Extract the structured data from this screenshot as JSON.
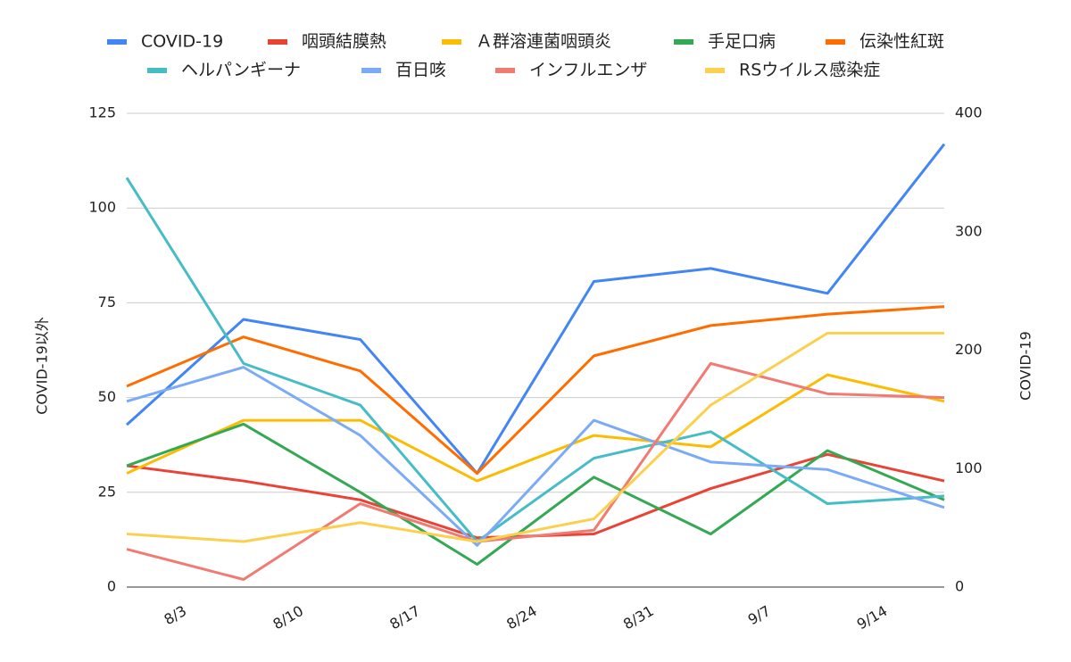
{
  "chart_data": {
    "type": "line",
    "categories": [
      "8/3",
      "8/10",
      "8/17",
      "8/24",
      "8/31",
      "9/7",
      "9/14",
      null
    ],
    "ylabel": "COVID-19以外",
    "y2label": "COVID-19",
    "ylim": [
      0,
      125
    ],
    "yticks": [
      0,
      25,
      50,
      75,
      100,
      125
    ],
    "y2lim": [
      0,
      400
    ],
    "y2ticks": [
      0,
      100,
      200,
      300,
      400
    ],
    "grid": true,
    "legend": "top",
    "series": [
      {
        "name": "COVID-19",
        "color": "#4285f4",
        "axis": "y2",
        "values": [
          137,
          226,
          209,
          96,
          258,
          269,
          248,
          374
        ]
      },
      {
        "name": "咽頭結膜熱",
        "color": "#ea4335",
        "values": [
          32,
          28,
          23,
          13,
          14,
          26,
          35,
          28
        ]
      },
      {
        "name": "Ａ群溶連菌咽頭炎",
        "color": "#fbbc04",
        "values": [
          30,
          44,
          44,
          28,
          40,
          37,
          56,
          49
        ]
      },
      {
        "name": "手足口病",
        "color": "#34a853",
        "values": [
          32,
          43,
          25,
          6,
          29,
          14,
          36,
          23
        ]
      },
      {
        "name": "伝染性紅斑",
        "color": "#ff6d01",
        "values": [
          53,
          66,
          57,
          30,
          61,
          69,
          72,
          74
        ]
      },
      {
        "name": "ヘルパンギーナ",
        "color": "#46bdc6",
        "values": [
          108,
          59,
          48,
          12,
          34,
          41,
          22,
          24
        ]
      },
      {
        "name": "百日咳",
        "color": "#7baaf7",
        "values": [
          49,
          58,
          40,
          11,
          44,
          33,
          31,
          21
        ]
      },
      {
        "name": "インフルエンザ",
        "color": "#f07b72",
        "values": [
          10,
          2,
          22,
          12,
          15,
          59,
          51,
          50
        ]
      },
      {
        "name": "RSウイルス感染症",
        "color": "#fcd04f",
        "values": [
          14,
          12,
          17,
          12,
          18,
          48,
          67,
          67
        ]
      }
    ]
  }
}
